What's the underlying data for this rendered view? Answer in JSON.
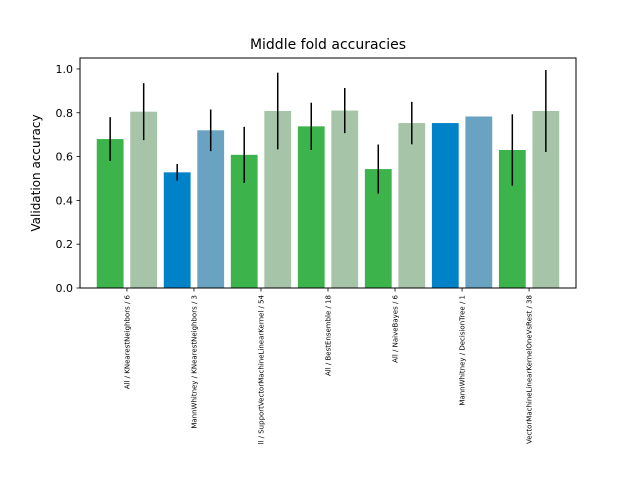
{
  "chart_data": {
    "type": "bar",
    "title": "Middle fold accuracies",
    "xlabel": "",
    "ylabel": "Validation accuracy",
    "ylim": [
      0.0,
      1.05
    ],
    "yticks": [
      "0.0",
      "0.2",
      "0.4",
      "0.6",
      "0.8",
      "1.0"
    ],
    "grid": false,
    "bars": [
      {
        "value": 0.68,
        "err": 0.1,
        "color": "#3cb44b"
      },
      {
        "value": 0.805,
        "err": 0.13,
        "color": "#a6c4a8"
      },
      {
        "value": 0.528,
        "err": 0.038,
        "color": "#0082c8"
      },
      {
        "value": 0.72,
        "err": 0.095,
        "color": "#6aa3c2"
      },
      {
        "value": 0.608,
        "err": 0.128,
        "color": "#3cb44b"
      },
      {
        "value": 0.808,
        "err": 0.175,
        "color": "#a6c4a8"
      },
      {
        "value": 0.738,
        "err": 0.108,
        "color": "#3cb44b"
      },
      {
        "value": 0.81,
        "err": 0.103,
        "color": "#a6c4a8"
      },
      {
        "value": 0.543,
        "err": 0.112,
        "color": "#3cb44b"
      },
      {
        "value": 0.753,
        "err": 0.097,
        "color": "#a6c4a8"
      },
      {
        "value": 0.753,
        "err": null,
        "color": "#0082c8"
      },
      {
        "value": 0.783,
        "err": null,
        "color": "#6aa3c2"
      },
      {
        "value": 0.63,
        "err": 0.163,
        "color": "#3cb44b"
      },
      {
        "value": 0.808,
        "err": 0.187,
        "color": "#a6c4a8"
      }
    ],
    "tick_labels": [
      {
        "bar": 0.5,
        "label": "All / KNearestNeighbors / 6"
      },
      {
        "bar": 2.5,
        "label": "MannWhitney / KNearestNeighbors / 3"
      },
      {
        "bar": 4.5,
        "label": "ll / SupportVectorMachineLinearKernel / 54"
      },
      {
        "bar": 6.5,
        "label": "All / BestEnsemble / 18"
      },
      {
        "bar": 8.5,
        "label": "All / NaiveBayes / 6"
      },
      {
        "bar": 10.5,
        "label": "MannWhitney / DecisionTree / 1"
      },
      {
        "bar": 12.5,
        "label": "VectorMachineLinearKernelOneVsRest / 38"
      }
    ]
  }
}
